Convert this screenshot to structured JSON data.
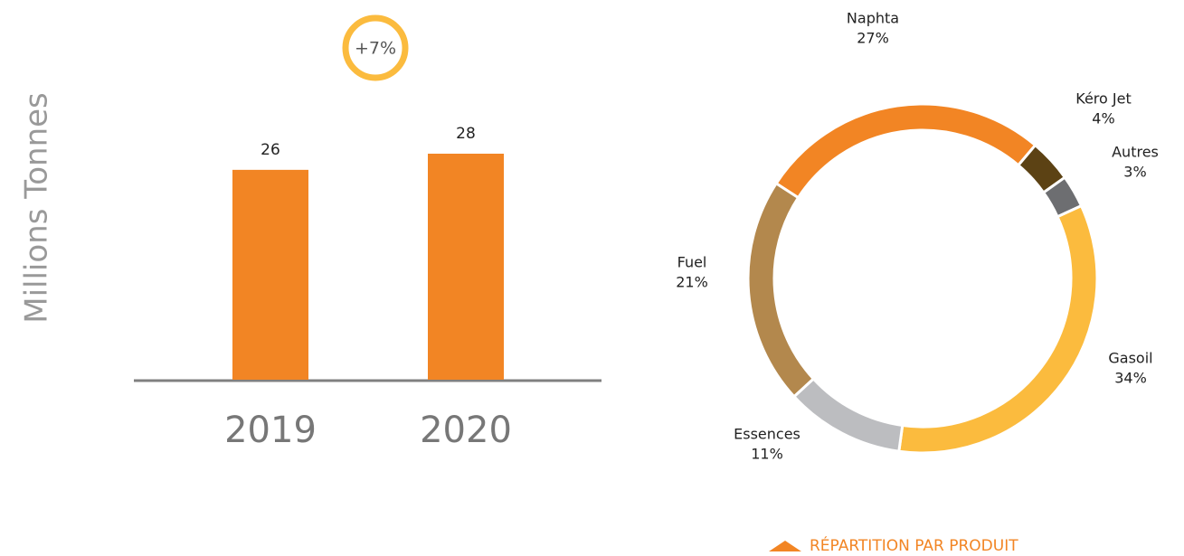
{
  "chart_data": [
    {
      "type": "bar",
      "y_label": "Millions Tonnes",
      "annotation": "+7%",
      "categories": [
        "2019",
        "2020"
      ],
      "values": [
        26,
        28
      ],
      "color": "#f28524"
    },
    {
      "type": "pie",
      "title": "RÉPARTITION PAR PRODUIT",
      "categories": [
        "Naphta",
        "Kéro Jet",
        "Autres",
        "Gasoil",
        "Essences",
        "Fuel"
      ],
      "values": [
        27,
        4,
        3,
        34,
        11,
        21
      ],
      "value_labels": [
        "27%",
        "4%",
        "3%",
        "34%",
        "11%",
        "21%"
      ],
      "colors": [
        "#f28524",
        "#5c4214",
        "#6d6e71",
        "#fbbb3e",
        "#bcbdc0",
        "#b3884d"
      ]
    }
  ]
}
